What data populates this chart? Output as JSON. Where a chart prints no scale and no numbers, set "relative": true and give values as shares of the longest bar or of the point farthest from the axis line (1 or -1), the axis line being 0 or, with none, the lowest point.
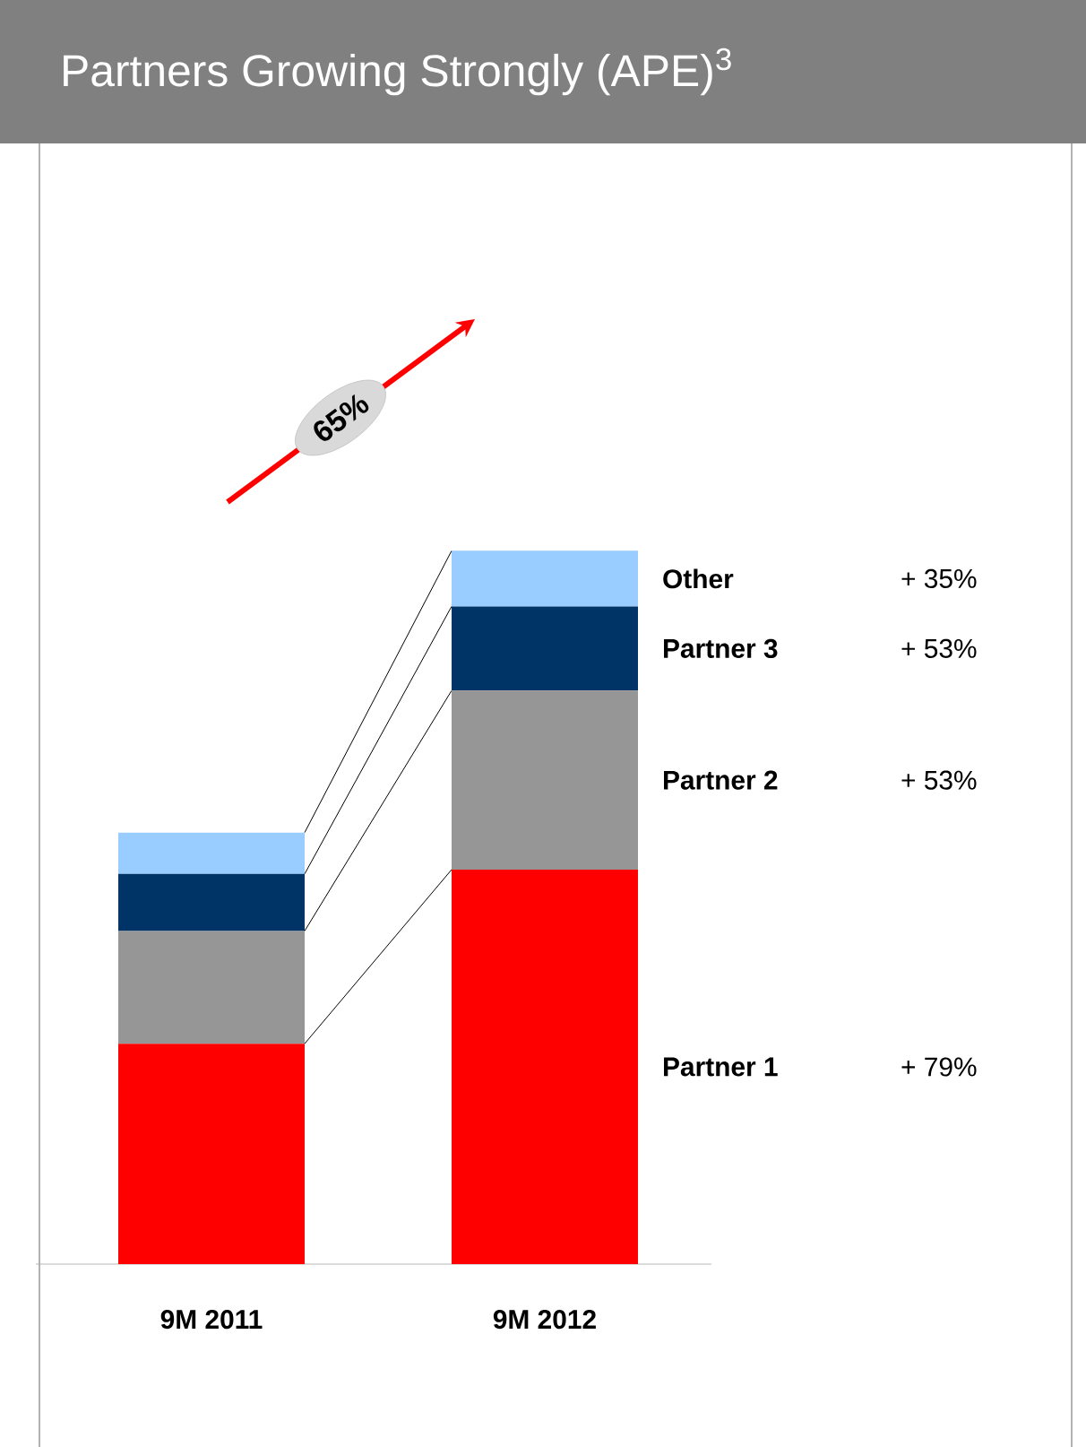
{
  "chart_data": {
    "type": "bar",
    "title": "Partners Growing Strongly (APE)$^{3}$",
    "stacked": true,
    "relative": true,
    "categories": [
      "9M 2011",
      "9M 2012"
    ],
    "series": [
      {
        "name": "Partner 1",
        "color": "#ff0000",
        "values": [
          0.309,
          0.553
        ]
      },
      {
        "name": "Partner 2",
        "color": "#969696",
        "values": [
          0.158,
          0.251
        ]
      },
      {
        "name": "Partner 3",
        "color": "#003366",
        "values": [
          0.08,
          0.118
        ]
      },
      {
        "name": "Other",
        "color": "#99ccff",
        "values": [
          0.058,
          0.078
        ]
      }
    ],
    "annotations": [
      "+ 79%",
      "+ 53%",
      "+ 53%",
      "+ 35%",
      "65%"
    ]
  }
}
